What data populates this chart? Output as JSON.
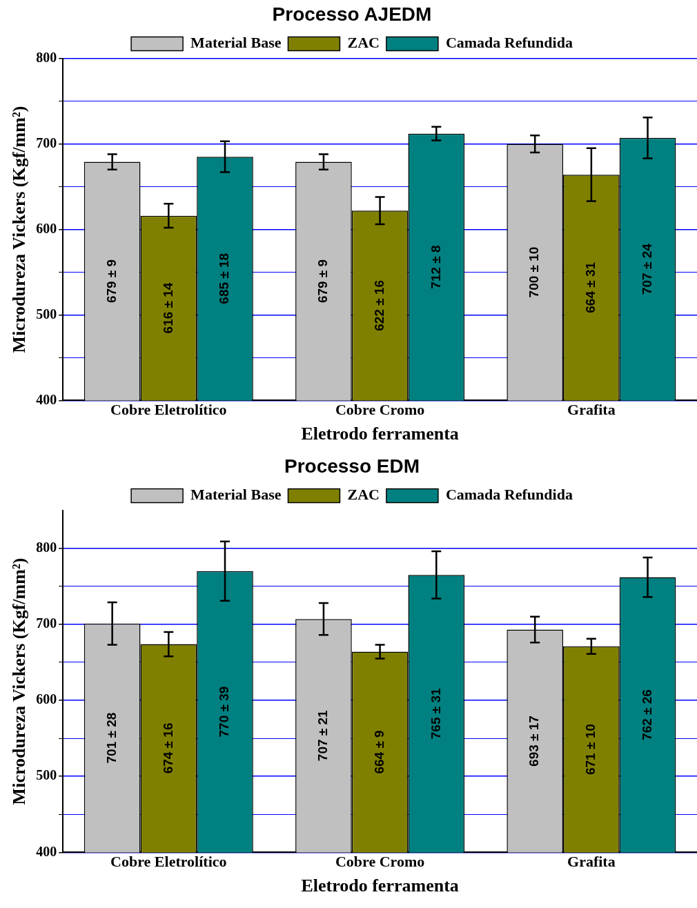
{
  "chart_data": [
    {
      "type": "bar",
      "title": "Processo AJEDM",
      "xlabel": "Eletrodo ferramenta",
      "ylabel": "Microdureza Vickers (Kgf/mm²)",
      "categories": [
        "Cobre Eletrolítico",
        "Cobre Cromo",
        "Grafita"
      ],
      "series": [
        {
          "name": "Material Base",
          "color": "#c0c0c0",
          "values": [
            679,
            679,
            700
          ],
          "errors": [
            9,
            9,
            10
          ],
          "value_labels": [
            "679 ± 9",
            "679 ± 9",
            "700 ± 10"
          ]
        },
        {
          "name": "ZAC",
          "color": "#808000",
          "values": [
            616,
            622,
            664
          ],
          "errors": [
            14,
            16,
            31
          ],
          "value_labels": [
            "616 ± 14",
            "622 ± 16",
            "664 ± 31"
          ]
        },
        {
          "name": "Camada Refundida",
          "color": "#008080",
          "values": [
            685,
            712,
            707
          ],
          "errors": [
            18,
            8,
            24
          ],
          "value_labels": [
            "685 ± 18",
            "712 ± 8",
            "707 ± 24"
          ]
        }
      ],
      "ylim": [
        400,
        800
      ],
      "yticks": [
        400,
        {
          "value": 450,
          "label": null
        },
        500,
        {
          "value": 550,
          "label": null
        },
        600,
        {
          "value": 650,
          "label": null
        },
        700,
        {
          "value": 750,
          "label": null
        },
        800
      ],
      "grid": "y",
      "legend": "top"
    },
    {
      "type": "bar",
      "title": "Processo EDM",
      "xlabel": "Eletrodo ferramenta",
      "ylabel": "Microdureza Vickers (Kgf/mm²)",
      "categories": [
        "Cobre Eletrolítico",
        "Cobre Cromo",
        "Grafita"
      ],
      "series": [
        {
          "name": "Material Base",
          "color": "#c0c0c0",
          "values": [
            701,
            707,
            693
          ],
          "errors": [
            28,
            21,
            17
          ],
          "value_labels": [
            "701 ± 28",
            "707 ± 21",
            "693 ± 17"
          ]
        },
        {
          "name": "ZAC",
          "color": "#808000",
          "values": [
            674,
            664,
            671
          ],
          "errors": [
            16,
            9,
            10
          ],
          "value_labels": [
            "674 ± 16",
            "664 ± 9",
            "671 ± 10"
          ]
        },
        {
          "name": "Camada Refundida",
          "color": "#008080",
          "values": [
            770,
            765,
            762
          ],
          "errors": [
            39,
            31,
            26
          ],
          "value_labels": [
            "770 ± 39",
            "765 ± 31",
            "762 ± 26"
          ]
        }
      ],
      "ylim": [
        400,
        850
      ],
      "yticks": [
        400,
        {
          "value": 450,
          "label": null
        },
        500,
        {
          "value": 550,
          "label": null
        },
        600,
        {
          "value": 650,
          "label": null
        },
        700,
        {
          "value": 750,
          "label": null
        },
        800
      ],
      "grid": "y",
      "legend": "top"
    }
  ]
}
